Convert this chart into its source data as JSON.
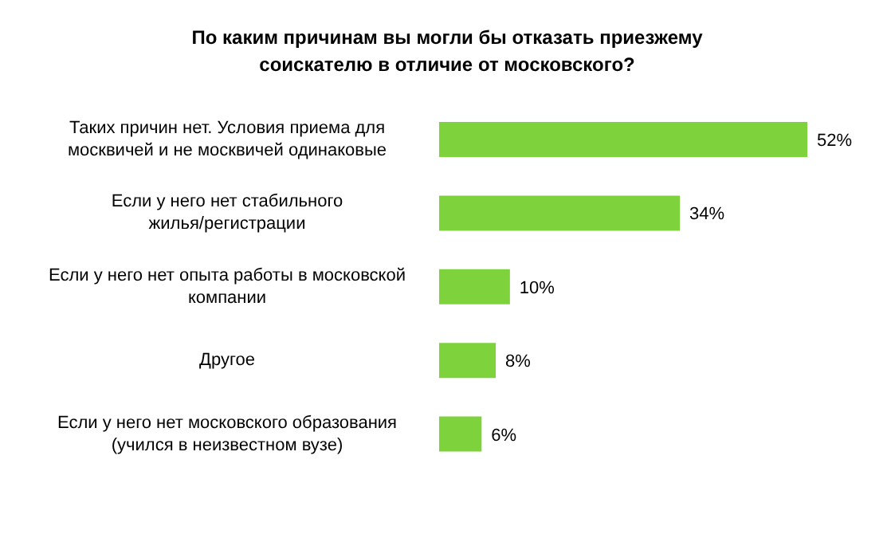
{
  "chart_data": {
    "type": "bar",
    "orientation": "horizontal",
    "title": "По каким причинам вы могли бы отказать приезжему соискателю в отличие от московского?",
    "categories": [
      "Таких причин нет. Условия приема для москвичей и не москвичей одинаковые",
      "Если у него нет стабильного жилья/регистрации",
      "Если у него нет опыта работы в московской компании",
      "Другое",
      "Если у него нет московского образования (учился в неизвестном вузе)"
    ],
    "values": [
      52,
      34,
      10,
      8,
      6
    ],
    "value_labels": [
      "52%",
      "34%",
      "10%",
      "8%",
      "6%"
    ],
    "color": "#7ed23c"
  }
}
